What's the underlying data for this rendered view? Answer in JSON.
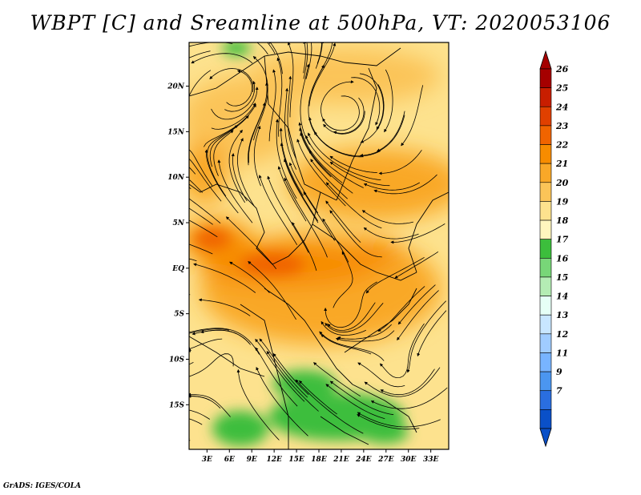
{
  "title": "WBPT [C] and Sreamline at 500hPa, VT: 2020053106",
  "credit": "GrADS: IGES/COLA",
  "map": {
    "lat_labels": [
      "20N",
      "15N",
      "10N",
      "5N",
      "EQ",
      "5S",
      "10S",
      "15S"
    ],
    "lon_labels": [
      "3E",
      "6E",
      "9E",
      "12E",
      "15E",
      "18E",
      "21E",
      "24E",
      "27E",
      "30E",
      "33E"
    ],
    "lat_values": [
      20,
      15,
      10,
      5,
      0,
      -5,
      -10,
      -15
    ],
    "lon_values": [
      3,
      6,
      9,
      12,
      15,
      18,
      21,
      24,
      27,
      30,
      33
    ],
    "lon_range": [
      0.6,
      35.4
    ],
    "lat_range": [
      -19.9,
      24.8
    ]
  },
  "colorbar": {
    "labels": [
      "26",
      "25",
      "24",
      "23",
      "22",
      "21",
      "20",
      "19",
      "18",
      "17",
      "16",
      "15",
      "14",
      "13",
      "12",
      "11",
      "9",
      "7"
    ],
    "colors": [
      "#a50000",
      "#c81e00",
      "#e04000",
      "#f06400",
      "#f78c00",
      "#f9a828",
      "#fbc458",
      "#fde28e",
      "#fff6be",
      "#3cbe3c",
      "#78d678",
      "#b4ecb4",
      "#e6fff6",
      "#c8e6ff",
      "#a0ccff",
      "#78b4ff",
      "#4b96f0",
      "#2a6ee0",
      "#0a50c8"
    ],
    "top_color": "#a50000",
    "bottom_color": "#0a50c8"
  },
  "colors": {
    "land_warm": "#fde28e",
    "land_hot": "#f78c00"
  }
}
